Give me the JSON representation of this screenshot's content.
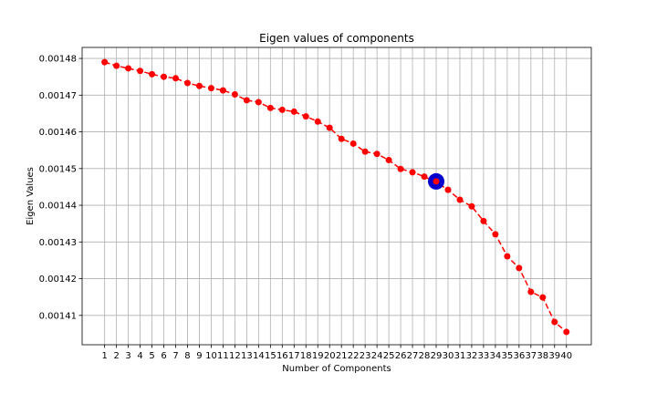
{
  "chart_data": {
    "type": "line",
    "title": "Eigen values of components",
    "xlabel": "Number of Components",
    "ylabel": "Eigen Values",
    "x": [
      1,
      2,
      3,
      4,
      5,
      6,
      7,
      8,
      9,
      10,
      11,
      12,
      13,
      14,
      15,
      16,
      17,
      18,
      19,
      20,
      21,
      22,
      23,
      24,
      25,
      26,
      27,
      28,
      29,
      30,
      31,
      32,
      33,
      34,
      35,
      36,
      37,
      38,
      39,
      40
    ],
    "x_tick_labels": [
      "1",
      "2",
      "3",
      "4",
      "5",
      "6",
      "7",
      "8",
      "9",
      "10",
      "11",
      "12",
      "13",
      "14",
      "15",
      "16",
      "17",
      "18",
      "19",
      "20",
      "21",
      "22",
      "23",
      "24",
      "25",
      "26",
      "27",
      "28",
      "29",
      "30",
      "31",
      "32",
      "33",
      "34",
      "35",
      "36",
      "37",
      "38",
      "39",
      "40"
    ],
    "y_tick_labels": [
      "0.00141",
      "0.00142",
      "0.00143",
      "0.00144",
      "0.00145",
      "0.00146",
      "0.00147",
      "0.00148"
    ],
    "y_ticks": [
      0.00141,
      0.00142,
      0.00143,
      0.00144,
      0.00145,
      0.00146,
      0.00147,
      0.00148
    ],
    "ylim": [
      0.001402,
      0.001483
    ],
    "xlim": [
      -0.9,
      42.1
    ],
    "grid": true,
    "series": [
      {
        "color": "#ff0000",
        "line_style": "dashed",
        "marker": "circle",
        "values": [
          0.001479,
          0.001478,
          0.0014773,
          0.0014766,
          0.0014757,
          0.001475,
          0.0014746,
          0.0014733,
          0.0014725,
          0.0014719,
          0.0014713,
          0.0014702,
          0.0014686,
          0.0014681,
          0.0014665,
          0.001466,
          0.0014655,
          0.0014642,
          0.0014628,
          0.0014611,
          0.0014581,
          0.0014568,
          0.0014546,
          0.001454,
          0.0014523,
          0.0014499,
          0.001449,
          0.0014478,
          0.0014463,
          0.0014442,
          0.0014415,
          0.0014397,
          0.0014357,
          0.0014321,
          0.0014261,
          0.0014229,
          0.0014164,
          0.0014149,
          0.0014082,
          0.0014055
        ]
      }
    ],
    "highlight": {
      "x": 29,
      "y": 0.0014465,
      "color": "#0000cc"
    }
  }
}
